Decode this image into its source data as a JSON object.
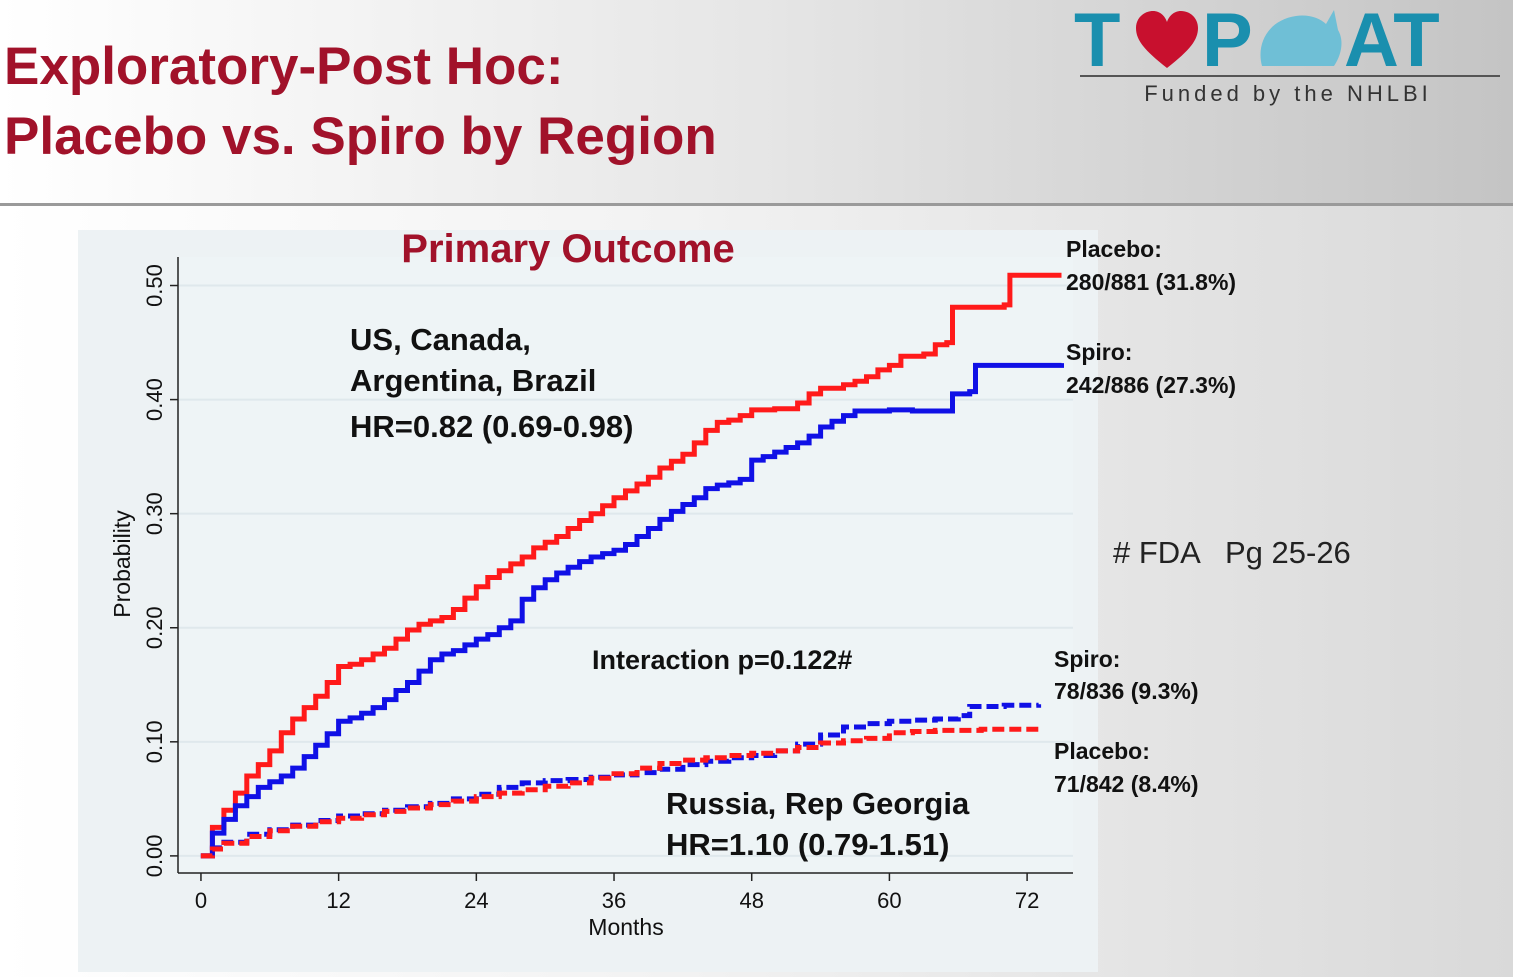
{
  "slide": {
    "title_line1": "Exploratory-Post Hoc:",
    "title_line2": "Placebo vs. Spiro by Region",
    "fda_note": "# FDA   Pg 25-26"
  },
  "logo": {
    "text_left": "T",
    "text_mid": "P",
    "text_right": "AT",
    "tagline": "Funded by the NHLBI",
    "colors": {
      "teal": "#1a8fae",
      "heart": "#c8102e",
      "line": "#555555"
    }
  },
  "chart_data": {
    "type": "line",
    "title": "Primary Outcome",
    "xlabel": "Months",
    "ylabel": "Probability",
    "xlim": [
      -2,
      76
    ],
    "ylim": [
      -0.015,
      0.525
    ],
    "x_ticks": [
      "0",
      "12",
      "24",
      "36",
      "48",
      "60",
      "72"
    ],
    "x_tick_values": [
      0,
      12,
      24,
      36,
      48,
      60,
      72
    ],
    "y_ticks": [
      "0.00",
      "0.10",
      "0.20",
      "0.30",
      "0.40",
      "0.50"
    ],
    "y_tick_values": [
      0,
      0.1,
      0.2,
      0.3,
      0.4,
      0.5
    ],
    "grid": true,
    "colors": {
      "placebo": "#ff1a1a",
      "spiro": "#1010e6",
      "grid": "#dfe8ec",
      "title": "#a1122a"
    },
    "series": [
      {
        "name": "Placebo",
        "region": "americas",
        "style": "solid",
        "color_key": "placebo",
        "label_name": "Placebo:",
        "label_count": "280/881 (31.8%)",
        "points": [
          [
            0,
            0
          ],
          [
            1,
            0.025
          ],
          [
            2,
            0.04
          ],
          [
            3,
            0.055
          ],
          [
            4,
            0.07
          ],
          [
            5,
            0.08
          ],
          [
            6,
            0.092
          ],
          [
            7,
            0.108
          ],
          [
            8,
            0.12
          ],
          [
            9,
            0.13
          ],
          [
            10,
            0.14
          ],
          [
            11,
            0.152
          ],
          [
            12,
            0.166
          ],
          [
            13,
            0.168
          ],
          [
            14,
            0.172
          ],
          [
            15,
            0.177
          ],
          [
            16,
            0.182
          ],
          [
            17,
            0.19
          ],
          [
            18,
            0.198
          ],
          [
            19,
            0.203
          ],
          [
            20,
            0.206
          ],
          [
            21,
            0.209
          ],
          [
            22,
            0.216
          ],
          [
            23,
            0.226
          ],
          [
            24,
            0.236
          ],
          [
            25,
            0.244
          ],
          [
            26,
            0.25
          ],
          [
            27,
            0.256
          ],
          [
            28,
            0.262
          ],
          [
            29,
            0.27
          ],
          [
            30,
            0.275
          ],
          [
            31,
            0.28
          ],
          [
            32,
            0.287
          ],
          [
            33,
            0.294
          ],
          [
            34,
            0.3
          ],
          [
            35,
            0.307
          ],
          [
            36,
            0.314
          ],
          [
            37,
            0.32
          ],
          [
            38,
            0.326
          ],
          [
            39,
            0.332
          ],
          [
            40,
            0.34
          ],
          [
            41,
            0.346
          ],
          [
            42,
            0.352
          ],
          [
            43,
            0.362
          ],
          [
            44,
            0.373
          ],
          [
            45,
            0.38
          ],
          [
            46,
            0.382
          ],
          [
            47,
            0.386
          ],
          [
            48,
            0.391
          ],
          [
            50,
            0.392
          ],
          [
            52,
            0.397
          ],
          [
            53,
            0.405
          ],
          [
            54,
            0.41
          ],
          [
            56,
            0.413
          ],
          [
            57,
            0.416
          ],
          [
            58,
            0.42
          ],
          [
            59,
            0.426
          ],
          [
            60,
            0.43
          ],
          [
            61,
            0.438
          ],
          [
            63,
            0.44
          ],
          [
            64,
            0.448
          ],
          [
            65,
            0.45
          ],
          [
            65.5,
            0.481
          ],
          [
            68,
            0.481
          ],
          [
            70,
            0.483
          ],
          [
            70.5,
            0.509
          ],
          [
            75,
            0.509
          ]
        ]
      },
      {
        "name": "Spiro",
        "region": "americas",
        "style": "solid",
        "color_key": "spiro",
        "label_name": "Spiro:",
        "label_count": "242/886 (27.3%)",
        "points": [
          [
            0,
            0
          ],
          [
            1,
            0.02
          ],
          [
            2,
            0.032
          ],
          [
            3,
            0.044
          ],
          [
            4,
            0.052
          ],
          [
            5,
            0.06
          ],
          [
            6,
            0.065
          ],
          [
            7,
            0.07
          ],
          [
            8,
            0.077
          ],
          [
            9,
            0.087
          ],
          [
            10,
            0.097
          ],
          [
            11,
            0.107
          ],
          [
            12,
            0.118
          ],
          [
            13,
            0.121
          ],
          [
            14,
            0.125
          ],
          [
            15,
            0.13
          ],
          [
            16,
            0.137
          ],
          [
            17,
            0.145
          ],
          [
            18,
            0.152
          ],
          [
            19,
            0.162
          ],
          [
            20,
            0.172
          ],
          [
            21,
            0.177
          ],
          [
            22,
            0.18
          ],
          [
            23,
            0.185
          ],
          [
            24,
            0.19
          ],
          [
            25,
            0.194
          ],
          [
            26,
            0.2
          ],
          [
            27,
            0.206
          ],
          [
            28,
            0.225
          ],
          [
            29,
            0.235
          ],
          [
            30,
            0.242
          ],
          [
            31,
            0.248
          ],
          [
            32,
            0.253
          ],
          [
            33,
            0.258
          ],
          [
            34,
            0.262
          ],
          [
            35,
            0.265
          ],
          [
            36,
            0.268
          ],
          [
            37,
            0.273
          ],
          [
            38,
            0.28
          ],
          [
            39,
            0.287
          ],
          [
            40,
            0.295
          ],
          [
            41,
            0.302
          ],
          [
            42,
            0.308
          ],
          [
            43,
            0.314
          ],
          [
            44,
            0.322
          ],
          [
            45,
            0.325
          ],
          [
            46,
            0.327
          ],
          [
            47,
            0.33
          ],
          [
            48,
            0.347
          ],
          [
            49,
            0.35
          ],
          [
            50,
            0.354
          ],
          [
            51,
            0.358
          ],
          [
            52,
            0.362
          ],
          [
            53,
            0.368
          ],
          [
            54,
            0.376
          ],
          [
            55,
            0.381
          ],
          [
            56,
            0.386
          ],
          [
            57,
            0.39
          ],
          [
            60,
            0.391
          ],
          [
            62,
            0.39
          ],
          [
            65,
            0.39
          ],
          [
            65.5,
            0.405
          ],
          [
            67,
            0.407
          ],
          [
            67.5,
            0.43
          ],
          [
            75,
            0.432
          ]
        ]
      },
      {
        "name": "Spiro",
        "region": "russia_georgia",
        "style": "dashed",
        "color_key": "spiro",
        "label_name": "Spiro:",
        "label_count": "78/836 (9.3%)",
        "points": [
          [
            0,
            0
          ],
          [
            1,
            0.007
          ],
          [
            2,
            0.012
          ],
          [
            4,
            0.019
          ],
          [
            6,
            0.023
          ],
          [
            8,
            0.027
          ],
          [
            10,
            0.031
          ],
          [
            12,
            0.035
          ],
          [
            14,
            0.037
          ],
          [
            16,
            0.04
          ],
          [
            18,
            0.043
          ],
          [
            20,
            0.046
          ],
          [
            22,
            0.05
          ],
          [
            24,
            0.054
          ],
          [
            26,
            0.06
          ],
          [
            28,
            0.064
          ],
          [
            30,
            0.066
          ],
          [
            32,
            0.067
          ],
          [
            34,
            0.069
          ],
          [
            36,
            0.071
          ],
          [
            38,
            0.073
          ],
          [
            40,
            0.076
          ],
          [
            42,
            0.08
          ],
          [
            44,
            0.083
          ],
          [
            46,
            0.086
          ],
          [
            48,
            0.088
          ],
          [
            50,
            0.092
          ],
          [
            52,
            0.098
          ],
          [
            54,
            0.106
          ],
          [
            56,
            0.113
          ],
          [
            58,
            0.116
          ],
          [
            60,
            0.118
          ],
          [
            62,
            0.119
          ],
          [
            64,
            0.12
          ],
          [
            66,
            0.123
          ],
          [
            67,
            0.131
          ],
          [
            70,
            0.132
          ],
          [
            73,
            0.133
          ]
        ]
      },
      {
        "name": "Placebo",
        "region": "russia_georgia",
        "style": "dashed",
        "color_key": "placebo",
        "label_name": "Placebo:",
        "label_count": "71/842 (8.4%)",
        "points": [
          [
            0,
            0
          ],
          [
            1,
            0.006
          ],
          [
            2,
            0.011
          ],
          [
            4,
            0.017
          ],
          [
            6,
            0.022
          ],
          [
            8,
            0.026
          ],
          [
            10,
            0.03
          ],
          [
            12,
            0.033
          ],
          [
            14,
            0.036
          ],
          [
            16,
            0.039
          ],
          [
            18,
            0.042
          ],
          [
            20,
            0.045
          ],
          [
            22,
            0.048
          ],
          [
            24,
            0.052
          ],
          [
            26,
            0.055
          ],
          [
            28,
            0.058
          ],
          [
            30,
            0.061
          ],
          [
            32,
            0.064
          ],
          [
            34,
            0.068
          ],
          [
            36,
            0.072
          ],
          [
            38,
            0.077
          ],
          [
            40,
            0.081
          ],
          [
            42,
            0.084
          ],
          [
            44,
            0.086
          ],
          [
            46,
            0.088
          ],
          [
            48,
            0.09
          ],
          [
            50,
            0.092
          ],
          [
            52,
            0.095
          ],
          [
            54,
            0.099
          ],
          [
            56,
            0.101
          ],
          [
            58,
            0.103
          ],
          [
            60,
            0.108
          ],
          [
            62,
            0.109
          ],
          [
            64,
            0.11
          ],
          [
            66,
            0.11
          ],
          [
            68,
            0.111
          ],
          [
            70,
            0.111
          ],
          [
            73,
            0.111
          ]
        ]
      }
    ],
    "annotations": {
      "group1_line1": "US, Canada,",
      "group1_line2": "Argentina, Brazil",
      "group1_hr": "HR=0.82 (0.69-0.98)",
      "interaction": "Interaction p=0.122#",
      "group2_line1": "Russia, Rep Georgia",
      "group2_hr": "HR=1.10 (0.79-1.51)"
    }
  }
}
